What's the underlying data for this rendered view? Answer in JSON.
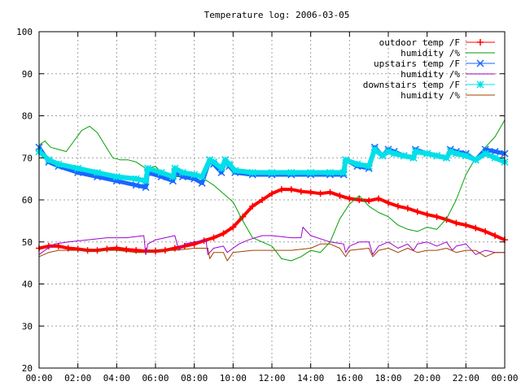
{
  "chart_data": {
    "type": "line",
    "title": "Temperature log: 2006-03-05",
    "xlabel": "",
    "ylabel": "",
    "xlim": [
      0,
      24
    ],
    "ylim": [
      20,
      100
    ],
    "grid": true,
    "legend_position": "top-right",
    "x_tick_labels": [
      "00:00",
      "02:00",
      "04:00",
      "06:00",
      "08:00",
      "10:00",
      "12:00",
      "14:00",
      "16:00",
      "18:00",
      "20:00",
      "22:00",
      "00:00"
    ],
    "y_tick_labels": [
      "20",
      "30",
      "40",
      "50",
      "60",
      "70",
      "80",
      "90",
      "100"
    ],
    "series": [
      {
        "name": "outdoor temp /F",
        "color": "#ff0000",
        "marker": "plus",
        "x": [
          0,
          0.5,
          1,
          1.5,
          2,
          2.5,
          3,
          3.5,
          4,
          4.5,
          5,
          5.5,
          6,
          6.5,
          7,
          7.5,
          8,
          8.5,
          9,
          9.5,
          10,
          10.5,
          11,
          11.5,
          12,
          12.5,
          13,
          13.5,
          14,
          14.5,
          15,
          15.5,
          16,
          16.5,
          17,
          17.5,
          18,
          18.5,
          19,
          19.5,
          20,
          20.5,
          21,
          21.5,
          22,
          22.5,
          23,
          23.5,
          24
        ],
        "values": [
          48.5,
          49,
          49,
          48.5,
          48.3,
          48,
          48,
          48.3,
          48.5,
          48.2,
          48,
          47.8,
          47.8,
          48,
          48.5,
          49,
          49.5,
          50.3,
          51,
          52,
          53.5,
          56,
          58.5,
          60,
          61.5,
          62.5,
          62.5,
          62,
          61.8,
          61.5,
          61.8,
          61,
          60.3,
          60,
          59.8,
          60.3,
          59.3,
          58.5,
          58,
          57.2,
          56.5,
          56,
          55.3,
          54.5,
          54,
          53.3,
          52.5,
          51.5,
          50.5
        ]
      },
      {
        "name": "humidity /%",
        "color": "#00a000",
        "marker": "none",
        "x": [
          0,
          0.3,
          0.6,
          1,
          1.4,
          1.8,
          2.2,
          2.6,
          3,
          3.4,
          3.8,
          4.2,
          4.6,
          5,
          5.5,
          6,
          6.5,
          7,
          7.5,
          8,
          8.5,
          9,
          9.5,
          10,
          10.5,
          11,
          11.5,
          12,
          12.5,
          13,
          13.5,
          14,
          14.5,
          15,
          15.5,
          16,
          16.5,
          17,
          17.5,
          18,
          18.5,
          19,
          19.5,
          20,
          20.5,
          21,
          21.5,
          22,
          22.5,
          23,
          23.5,
          24
        ],
        "values": [
          73,
          74,
          72.5,
          72,
          71.5,
          74,
          76.5,
          77.5,
          76,
          73,
          70,
          69.5,
          69.5,
          69,
          67.5,
          68,
          65.5,
          65.5,
          65.5,
          66,
          65,
          63.5,
          61.5,
          59.5,
          55,
          51,
          50,
          49,
          46,
          45.5,
          46.5,
          48,
          47.5,
          50,
          55.5,
          59,
          61,
          58.5,
          57,
          56,
          54,
          53,
          52.5,
          53.5,
          53,
          55.5,
          60,
          66,
          70,
          72.5,
          75,
          79
        ]
      },
      {
        "name": "upstairs temp /F",
        "color": "#1a66ff",
        "marker": "x",
        "x": [
          0,
          0.5,
          1,
          2,
          3,
          4,
          5,
          5.5,
          5.6,
          6.3,
          6.9,
          7,
          7.4,
          8,
          8.4,
          8.8,
          9,
          9.4,
          9.6,
          9.8,
          10.1,
          11,
          12,
          13,
          14,
          15,
          15.7,
          15.8,
          16.4,
          17,
          17.3,
          17.7,
          18,
          18.3,
          18.8,
          19.3,
          19.4,
          20,
          20.5,
          21,
          21.2,
          21.5,
          22,
          22.5,
          23,
          23.5,
          24
        ],
        "values": [
          72.5,
          69,
          68,
          66.5,
          65.5,
          64.5,
          63.5,
          63,
          66.5,
          65.5,
          64.5,
          66.5,
          65.5,
          65,
          64,
          69.5,
          68.5,
          66.5,
          69.5,
          68,
          66.5,
          66,
          66,
          66,
          66,
          66,
          66,
          69.5,
          68,
          67.5,
          72.5,
          70.5,
          72,
          71.5,
          70.5,
          70,
          72,
          71,
          70.5,
          70,
          72,
          71.5,
          71,
          69.5,
          72,
          71.5,
          71
        ]
      },
      {
        "name": "humidity /%",
        "color": "#a000d0",
        "marker": "none",
        "x": [
          0,
          0.3,
          0.8,
          1.5,
          2.5,
          3.5,
          4.5,
          5.4,
          5.5,
          5.6,
          6,
          7,
          7.2,
          7.5,
          8,
          8.6,
          8.7,
          9,
          9.5,
          9.7,
          10,
          10.3,
          10.8,
          11.5,
          12,
          13,
          13.5,
          13.6,
          14,
          15,
          15.7,
          15.8,
          16,
          16.5,
          17,
          17.2,
          17.5,
          18,
          18.5,
          19,
          19.3,
          19.5,
          20,
          20.5,
          21,
          21.3,
          21.5,
          22,
          22.5,
          23,
          23.5,
          24
        ],
        "values": [
          47,
          48,
          49.5,
          50,
          50.5,
          51,
          51,
          51.5,
          47,
          49.5,
          50.5,
          51.5,
          48,
          49.5,
          50,
          50.5,
          47,
          48.5,
          49,
          47.5,
          48.5,
          49.5,
          50.5,
          51.5,
          51.5,
          51,
          51,
          53.5,
          51.5,
          50,
          49.5,
          47.5,
          49,
          50,
          50,
          47,
          49,
          50,
          48.5,
          49.5,
          48,
          49.5,
          50,
          49,
          50,
          48,
          49,
          49.5,
          47,
          48,
          47.5,
          47.5
        ]
      },
      {
        "name": "downstairs temp /F",
        "color": "#00e0e8",
        "marker": "star",
        "x": [
          0,
          0.5,
          1,
          2,
          3,
          4,
          5,
          5.5,
          5.6,
          6.3,
          6.9,
          7,
          7.4,
          8,
          8.4,
          8.8,
          9,
          9.4,
          9.6,
          9.8,
          10.1,
          11,
          12,
          13,
          14,
          15,
          15.7,
          15.8,
          16.4,
          17,
          17.3,
          17.7,
          18,
          18.3,
          18.8,
          19.3,
          19.4,
          20,
          20.5,
          21,
          21.2,
          21.5,
          22,
          22.5,
          23,
          23.5,
          24
        ],
        "values": [
          71.5,
          69.5,
          68.5,
          67.5,
          66.5,
          65.5,
          65,
          64.5,
          67.5,
          66.5,
          65.5,
          67.5,
          66.5,
          66,
          65.5,
          69.5,
          69,
          67.5,
          69.5,
          68.5,
          67,
          66.5,
          66.5,
          66.5,
          66.5,
          66.5,
          66.5,
          69.5,
          68.5,
          68,
          72,
          70.5,
          71.5,
          71,
          70.5,
          70,
          71.5,
          71,
          70.5,
          70,
          71.5,
          71,
          70.5,
          69.5,
          71,
          70,
          69
        ]
      },
      {
        "name": "humidity /%",
        "color": "#a04000",
        "marker": "none",
        "x": [
          0,
          0.5,
          1,
          2,
          3,
          4,
          5,
          5.5,
          6,
          7,
          8,
          8.7,
          8.8,
          9,
          9.5,
          9.7,
          10,
          11,
          12,
          13,
          14,
          14.5,
          15,
          15.5,
          15.8,
          16,
          17,
          17.2,
          17.5,
          18,
          18.5,
          19,
          19.5,
          20,
          20.5,
          21,
          21.5,
          22,
          22.5,
          23,
          23.5,
          24
        ],
        "values": [
          46.5,
          47.5,
          48,
          48,
          48,
          48,
          47.5,
          47.5,
          48,
          48,
          48.5,
          48.5,
          46,
          47.5,
          47.5,
          45.5,
          47.5,
          48,
          48,
          48,
          48.5,
          49.5,
          49.5,
          48.5,
          46.5,
          48,
          48.5,
          46.5,
          48,
          48.5,
          47.5,
          48.5,
          47.5,
          48,
          48,
          48.5,
          47.5,
          48,
          48,
          46.5,
          47.5,
          47.5
        ]
      }
    ]
  }
}
